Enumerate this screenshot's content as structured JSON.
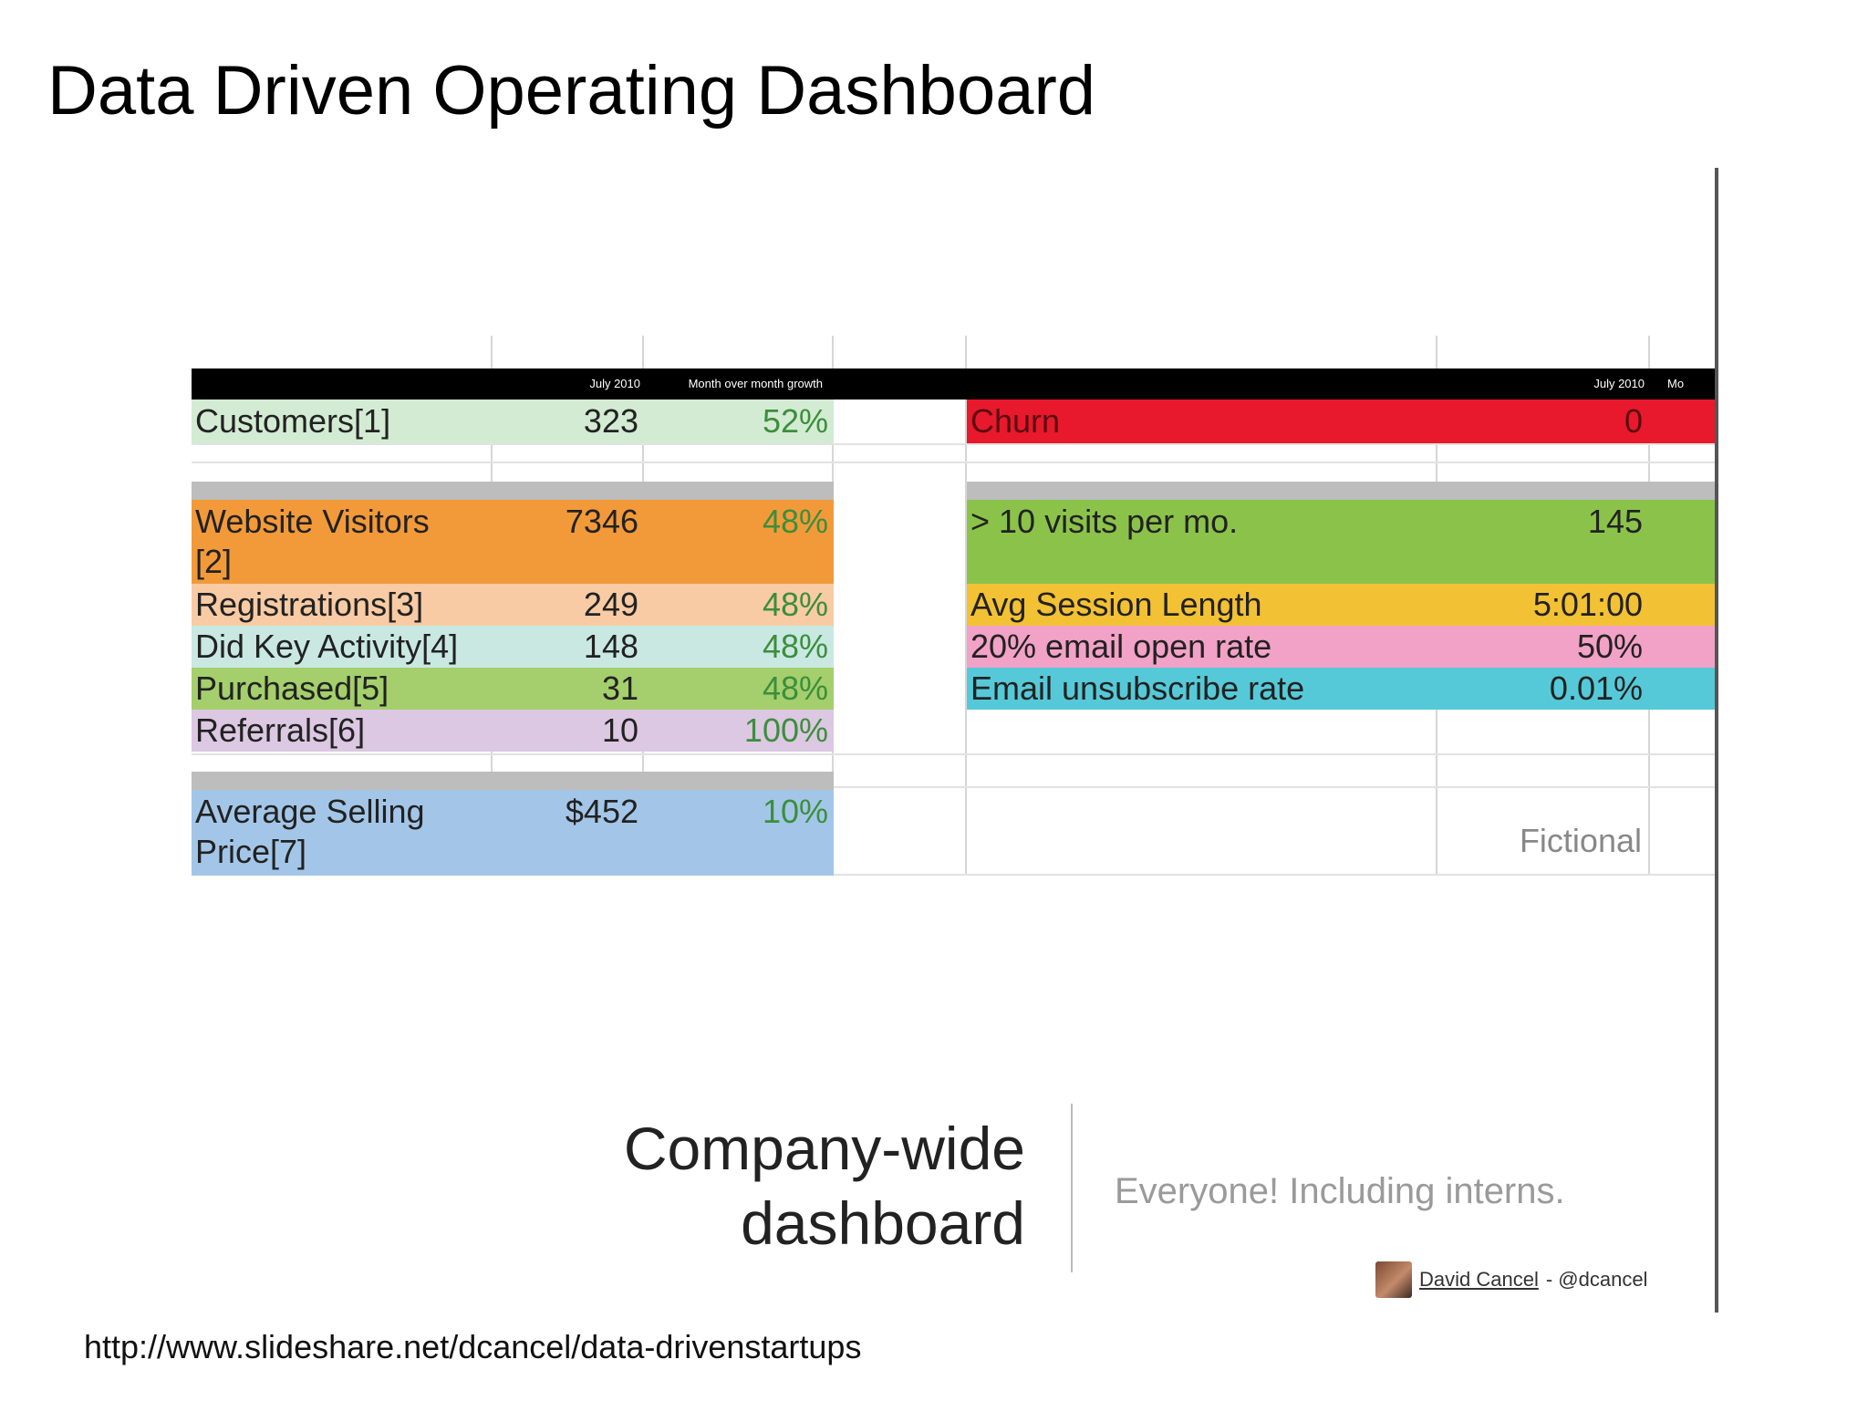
{
  "slide": {
    "title": "Data Driven Operating Dashboard",
    "source_url": "http://www.slideshare.net/dcancel/data-drivenstartups"
  },
  "left_table": {
    "headers": [
      "July 2010",
      "Month over month growth"
    ],
    "rows": [
      {
        "label": "Customers[1]",
        "value": "323",
        "growth": "52%",
        "color": "#d3ebd3"
      },
      {
        "label": "Website Visitors\n[2]",
        "value": "7346",
        "growth": "48%",
        "color": "#f29a3a"
      },
      {
        "label": "Registrations[3]",
        "value": "249",
        "growth": "48%",
        "color": "#f8cba4"
      },
      {
        "label": "Did Key Activity[4]",
        "value": "148",
        "growth": "48%",
        "color": "#c9e8e2"
      },
      {
        "label": "Purchased[5]",
        "value": "31",
        "growth": "48%",
        "color": "#a4cf6c"
      },
      {
        "label": "Referrals[6]",
        "value": "10",
        "growth": "100%",
        "color": "#dcc8e2"
      },
      {
        "label": "Average Selling\nPrice[7]",
        "value": "$452",
        "growth": "10%",
        "color": "#a3c6e8"
      }
    ]
  },
  "right_table": {
    "headers": [
      "July 2010",
      "Mo"
    ],
    "rows": [
      {
        "label": "Churn",
        "value": "0",
        "color": "#e8192c"
      },
      {
        "label": "> 10 visits per mo.",
        "value": "145",
        "color": "#8bc34a"
      },
      {
        "label": "Avg Session Length",
        "value": "5:01:00",
        "color": "#f3c134"
      },
      {
        "label": "20% email open rate",
        "value": "50%",
        "color": "#f2a2c6"
      },
      {
        "label": "Email unsubscribe rate",
        "value": "0.01%",
        "color": "#56c9d8"
      }
    ],
    "note": "Fictional"
  },
  "caption": {
    "heading_line1": "Company-wide",
    "heading_line2": "dashboard",
    "audience": "Everyone! Including interns.",
    "author_name": "David Cancel",
    "author_handle": "- @dcancel"
  }
}
